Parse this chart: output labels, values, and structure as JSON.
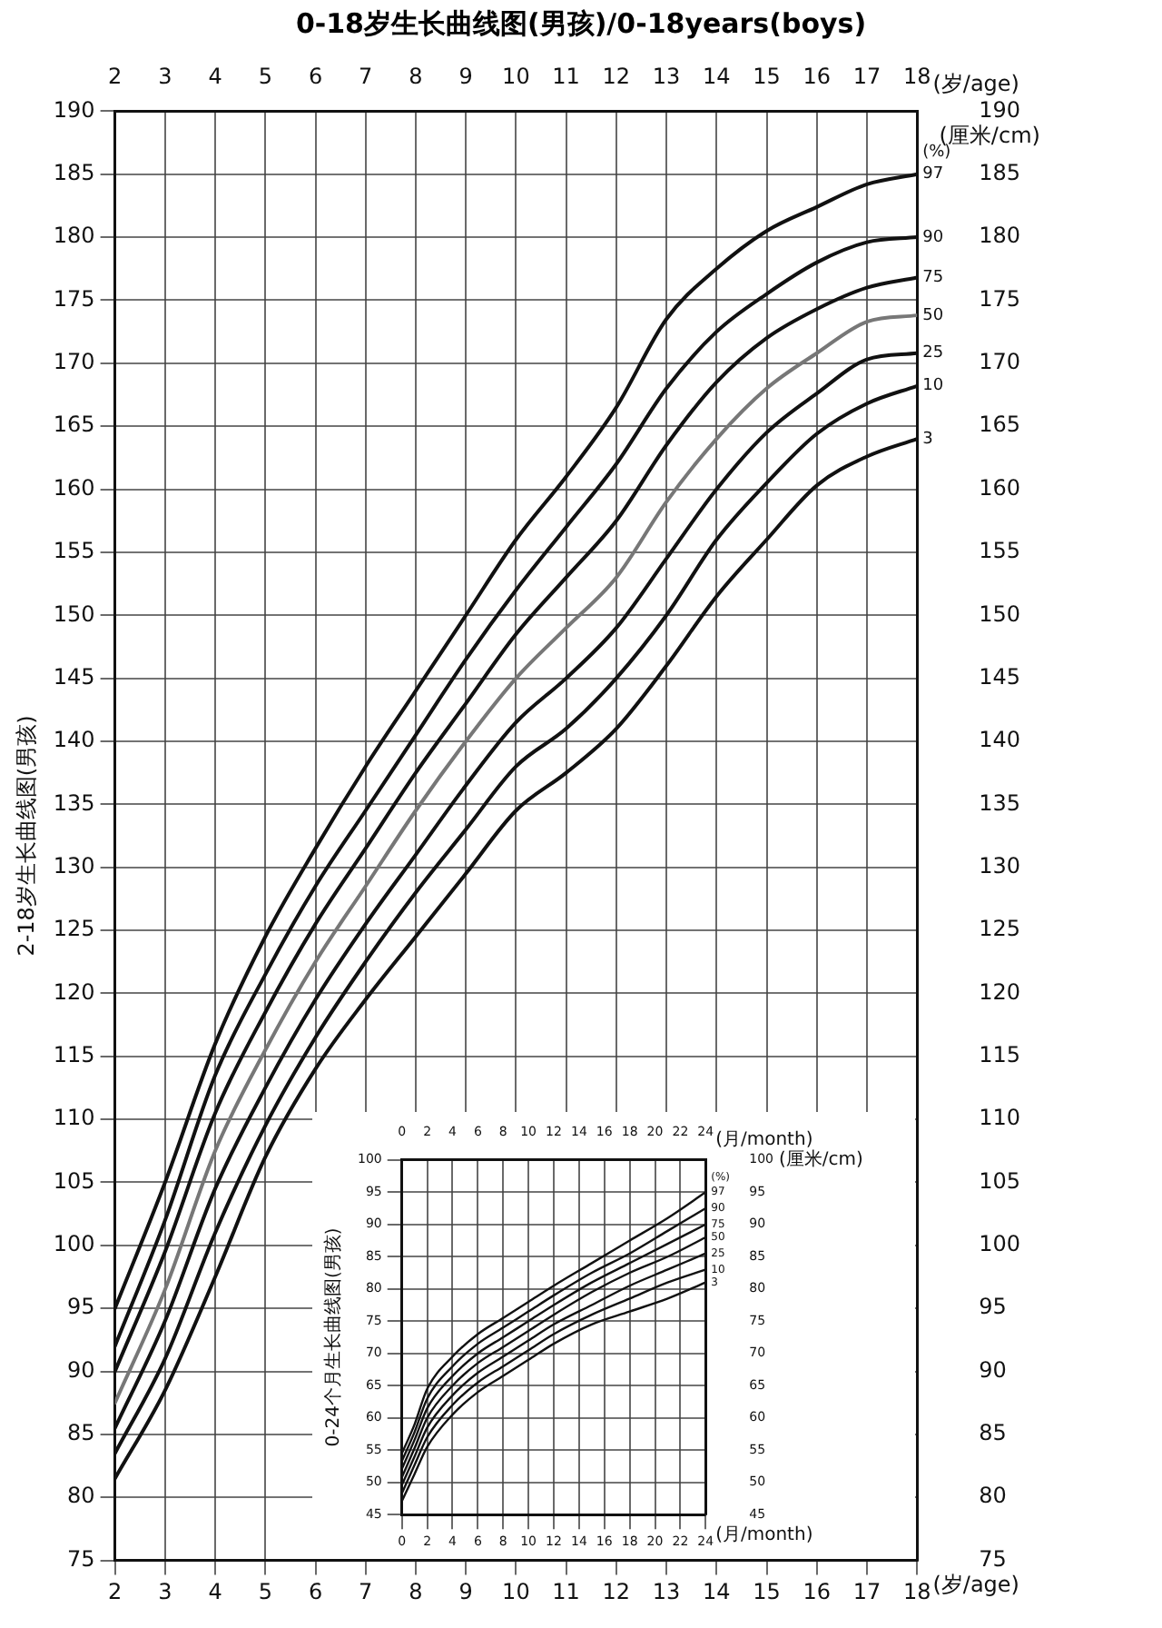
{
  "chart_data": [
    {
      "type": "line",
      "title": "0-18岁生长曲线图(男孩)/0-18years(boys)",
      "ylabel": "2-18岁生长曲线图(男孩)",
      "xlabel": "(岁/age)",
      "x2label": "(岁/age)",
      "y2label": "(厘米/cm)",
      "x": [
        2,
        3,
        4,
        5,
        6,
        7,
        8,
        9,
        10,
        11,
        12,
        13,
        14,
        15,
        16,
        17,
        18
      ],
      "xlim": [
        2,
        18
      ],
      "xticks": [
        2,
        3,
        4,
        5,
        6,
        7,
        8,
        9,
        10,
        11,
        12,
        13,
        14,
        15,
        16,
        17,
        18
      ],
      "x2lim": [
        2,
        18
      ],
      "x2ticks": [
        2,
        3,
        4,
        5,
        6,
        7,
        8,
        9,
        10,
        11,
        12,
        13,
        14,
        15,
        16,
        17,
        18
      ],
      "ylim": [
        75,
        190
      ],
      "yticks": [
        75,
        80,
        85,
        90,
        95,
        100,
        105,
        110,
        115,
        120,
        125,
        130,
        135,
        140,
        145,
        150,
        155,
        160,
        165,
        170,
        175,
        180,
        185,
        190
      ],
      "y2lim": [
        75,
        190
      ],
      "y2ticks": [
        75,
        80,
        85,
        90,
        95,
        100,
        105,
        110,
        115,
        120,
        125,
        130,
        135,
        140,
        145,
        150,
        155,
        160,
        165,
        170,
        175,
        180,
        185,
        190
      ],
      "grid": true,
      "marker": "none",
      "line_style": "solid",
      "annotations": [
        "(%)"
      ],
      "series": [
        {
          "name": "97",
          "color": "#111111",
          "values": [
            95,
            105,
            116,
            124.5,
            131.5,
            138,
            144,
            150,
            156,
            161,
            166.5,
            173.5,
            177.5,
            180.5,
            182.4,
            184.2,
            185
          ]
        },
        {
          "name": "90",
          "color": "#111111",
          "values": [
            92,
            102,
            113.5,
            121.5,
            128.5,
            134.5,
            140.5,
            146.5,
            152,
            157,
            162,
            168,
            172.5,
            175.5,
            178,
            179.6,
            180
          ]
        },
        {
          "name": "75",
          "color": "#111111",
          "values": [
            90,
            99.5,
            110.5,
            118.5,
            125.5,
            131.5,
            137.5,
            143,
            148.5,
            153,
            157.5,
            163.5,
            168.5,
            172,
            174.3,
            176,
            176.8
          ]
        },
        {
          "name": "50",
          "color": "#777777",
          "values": [
            87.5,
            96.5,
            107.5,
            115.5,
            122.5,
            128.5,
            134.5,
            140,
            145,
            149,
            153,
            159,
            164,
            168,
            170.8,
            173.3,
            173.8
          ]
        },
        {
          "name": "25",
          "color": "#111111",
          "values": [
            85.5,
            94,
            104.5,
            112.5,
            119.5,
            125.5,
            131,
            136.5,
            141.5,
            145,
            149,
            154.5,
            160,
            164.5,
            167.6,
            170.3,
            170.8
          ]
        },
        {
          "name": "10",
          "color": "#111111",
          "values": [
            83.5,
            91,
            101,
            109.5,
            116.5,
            122.5,
            128,
            133,
            138,
            141,
            145,
            150,
            156,
            160.5,
            164.4,
            166.8,
            168.2
          ]
        },
        {
          "name": "3",
          "color": "#111111",
          "values": [
            81.5,
            88.5,
            97.5,
            107,
            114,
            119.5,
            124.5,
            129.5,
            134.5,
            137.5,
            141,
            146,
            151.5,
            156,
            160.3,
            162.6,
            164
          ]
        }
      ]
    },
    {
      "type": "line",
      "ylabel": "0-24个月生长曲线图(男孩)",
      "xlabel": "(月/month)",
      "x2label": "(月/month)",
      "y2label": "(厘米/cm)",
      "x": [
        0,
        1,
        2,
        4,
        6,
        8,
        10,
        12,
        15,
        18,
        21,
        24
      ],
      "xlim": [
        0,
        24
      ],
      "xticks": [
        0,
        2,
        4,
        6,
        8,
        10,
        12,
        14,
        16,
        18,
        20,
        22,
        24
      ],
      "x2lim": [
        0,
        24
      ],
      "x2ticks": [
        0,
        2,
        4,
        6,
        8,
        10,
        12,
        14,
        16,
        18,
        20,
        22,
        24
      ],
      "ylim": [
        45,
        100
      ],
      "yticks": [
        45,
        50,
        55,
        60,
        65,
        70,
        75,
        80,
        85,
        90,
        95,
        100
      ],
      "y2lim": [
        45,
        100
      ],
      "y2ticks": [
        45,
        50,
        55,
        60,
        65,
        70,
        75,
        80,
        85,
        90,
        95,
        100
      ],
      "grid": true,
      "marker": "none",
      "line_style": "solid",
      "annotations": [
        "(%)"
      ],
      "series": [
        {
          "name": "97",
          "color": "#111111",
          "values": [
            54.5,
            59,
            64.5,
            69.5,
            73,
            75.5,
            78,
            80.5,
            84,
            87.5,
            91,
            95
          ]
        },
        {
          "name": "90",
          "color": "#111111",
          "values": [
            53.3,
            57.8,
            63,
            68,
            71.5,
            74,
            76.5,
            79,
            82.5,
            85.5,
            89,
            92.5
          ]
        },
        {
          "name": "75",
          "color": "#111111",
          "values": [
            52.1,
            56.6,
            61.5,
            66.5,
            70,
            72.5,
            75,
            77.5,
            81,
            84,
            87,
            90
          ]
        },
        {
          "name": "50",
          "color": "#111111",
          "values": [
            50.8,
            55.3,
            60,
            65,
            68.5,
            71,
            73.5,
            76,
            79.5,
            82.5,
            85,
            88
          ]
        },
        {
          "name": "25",
          "color": "#111111",
          "values": [
            49.6,
            54,
            58.5,
            63.5,
            67,
            69.5,
            72,
            74.5,
            77.5,
            80.5,
            83,
            85.5
          ]
        },
        {
          "name": "10",
          "color": "#111111",
          "values": [
            48.3,
            52.7,
            57,
            62,
            65.5,
            68,
            70.5,
            73,
            76,
            78.5,
            81,
            83
          ]
        },
        {
          "name": "3",
          "color": "#111111",
          "values": [
            47.1,
            51.3,
            55.5,
            60.5,
            64,
            66.5,
            69,
            71.5,
            74.5,
            76.5,
            78.5,
            81
          ]
        }
      ]
    }
  ]
}
